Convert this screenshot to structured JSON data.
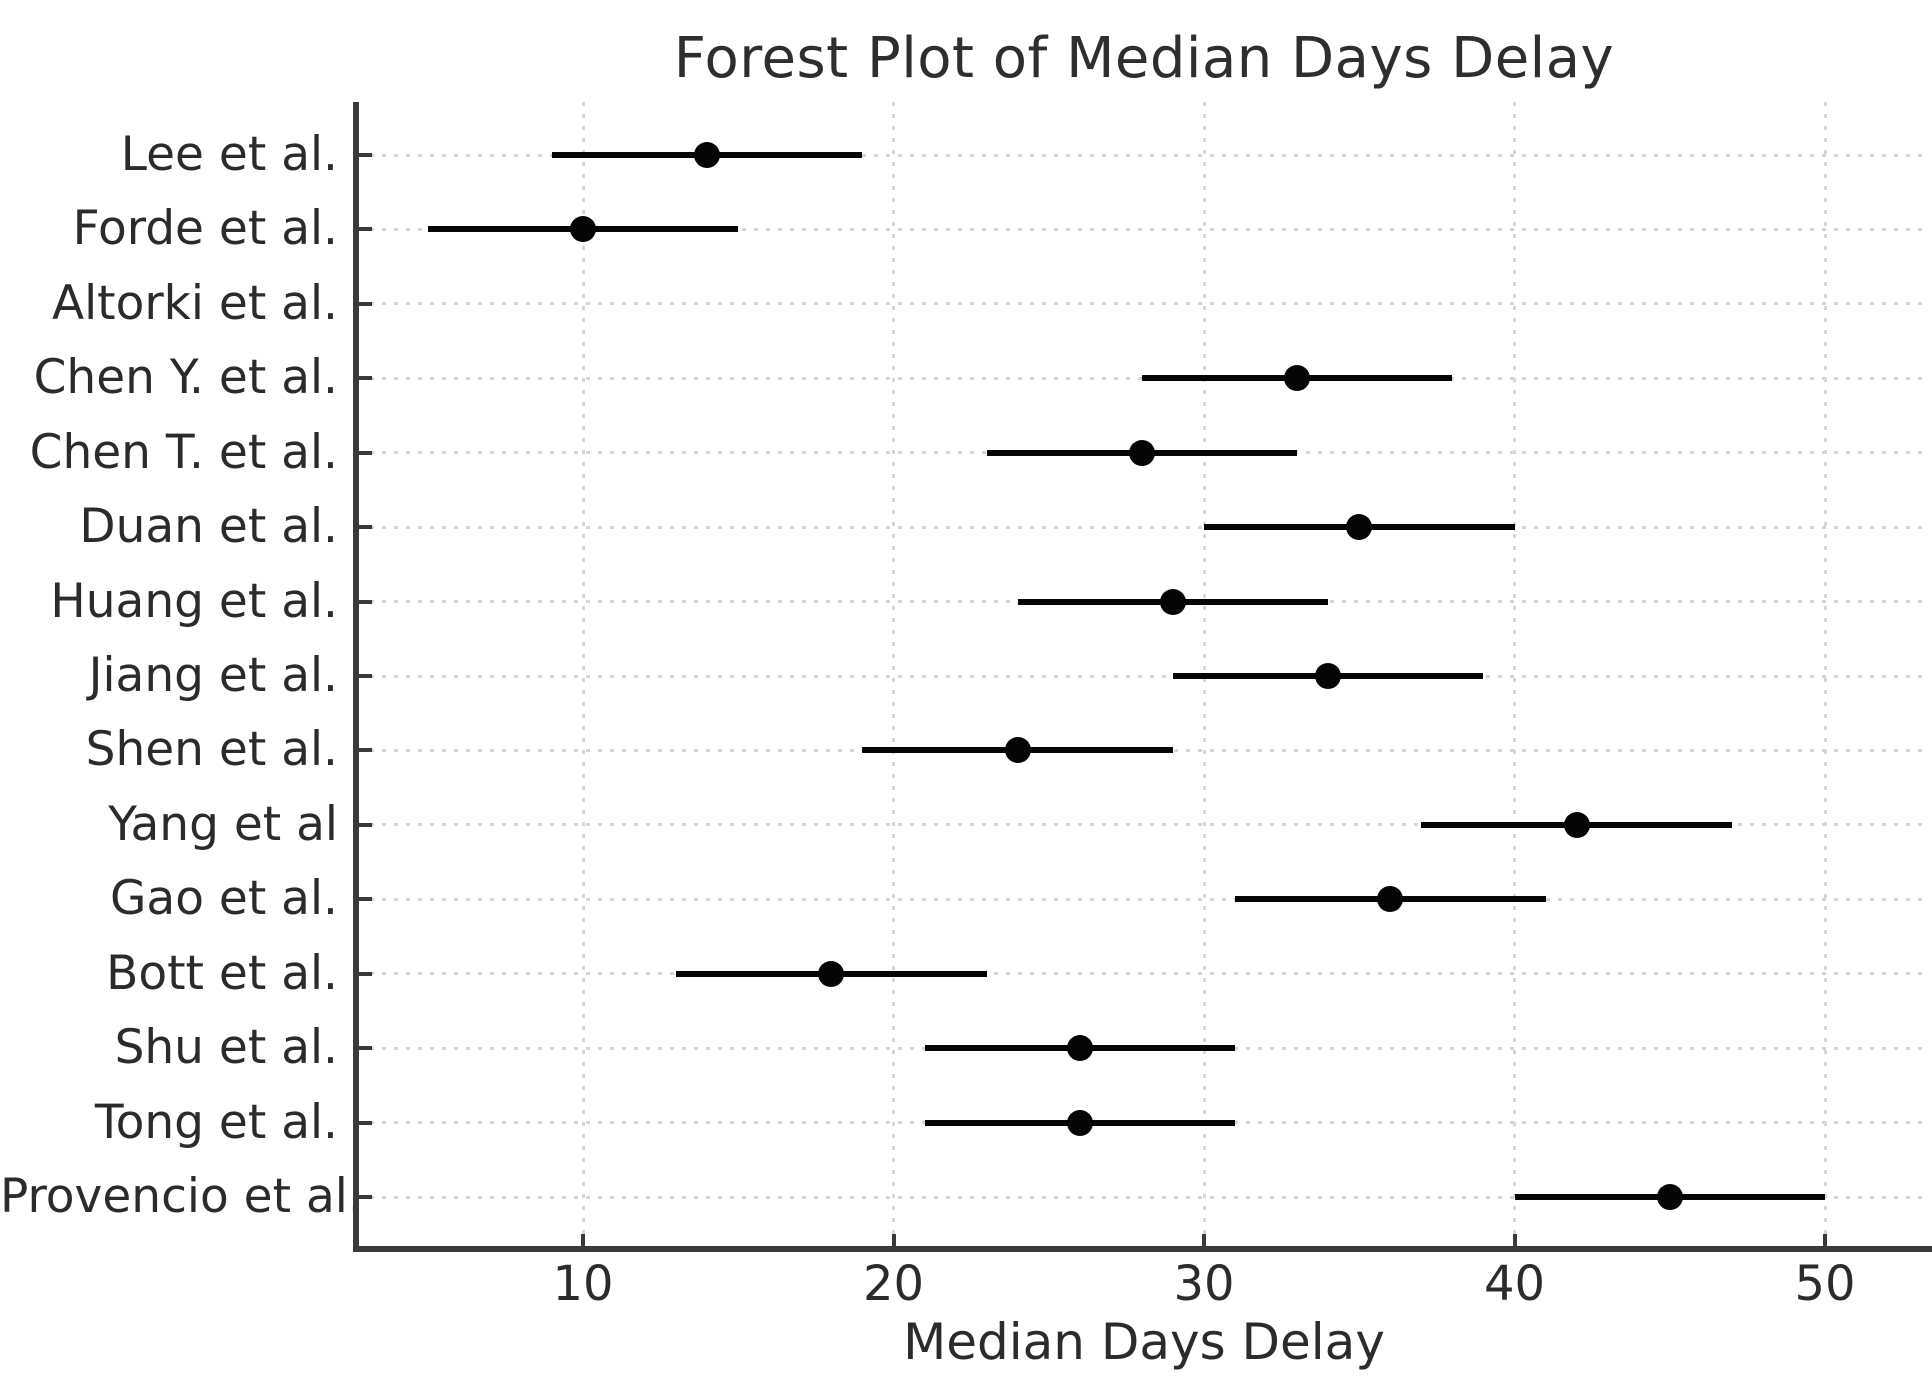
{
  "chart_data": {
    "type": "scatter",
    "variant": "forest-plot-with-horizontal-error-bars",
    "title": "Forest Plot of Median Days Delay",
    "xlabel": "Median Days Delay",
    "ylabel": "",
    "x_ticks": [
      "10",
      "20",
      "30",
      "40",
      "50"
    ],
    "x_tick_values": [
      10,
      20,
      30,
      40,
      50
    ],
    "xlim": [
      2.75,
      53.4
    ],
    "grid": "dotted, horizontal per study row and vertical per x tick",
    "legend": "none",
    "marker_color": "#050505",
    "bar_color": "#050505",
    "axis_color": "#3a3a3a",
    "grid_color": "#d6d6d6",
    "text_color": "#2b2b2b",
    "studies": [
      {
        "label": "Lee et al.",
        "median": 14,
        "ci_low": 9,
        "ci_high": 19
      },
      {
        "label": "Forde et al.",
        "median": 10,
        "ci_low": 5,
        "ci_high": 15
      },
      {
        "label": "Altorki et al.",
        "median": null,
        "ci_low": null,
        "ci_high": null
      },
      {
        "label": "Chen Y. et al.",
        "median": 33,
        "ci_low": 28,
        "ci_high": 38
      },
      {
        "label": "Chen T. et al.",
        "median": 28,
        "ci_low": 23,
        "ci_high": 33
      },
      {
        "label": "Duan et al.",
        "median": 35,
        "ci_low": 30,
        "ci_high": 40
      },
      {
        "label": "Huang et al.",
        "median": 29,
        "ci_low": 24,
        "ci_high": 34
      },
      {
        "label": "Jiang et al.",
        "median": 34,
        "ci_low": 29,
        "ci_high": 39
      },
      {
        "label": "Shen et al.",
        "median": 24,
        "ci_low": 19,
        "ci_high": 29
      },
      {
        "label": "Yang et al",
        "median": 42,
        "ci_low": 37,
        "ci_high": 47
      },
      {
        "label": "Gao et al.",
        "median": 36,
        "ci_low": 31,
        "ci_high": 41
      },
      {
        "label": "Bott et al.",
        "median": 18,
        "ci_low": 13,
        "ci_high": 23
      },
      {
        "label": "Shu et al.",
        "median": 26,
        "ci_low": 21,
        "ci_high": 31
      },
      {
        "label": "Tong et al.",
        "median": 26,
        "ci_low": 21,
        "ci_high": 31
      },
      {
        "label": "Provencio et al.",
        "median": 45,
        "ci_low": 40,
        "ci_high": 50
      }
    ]
  }
}
